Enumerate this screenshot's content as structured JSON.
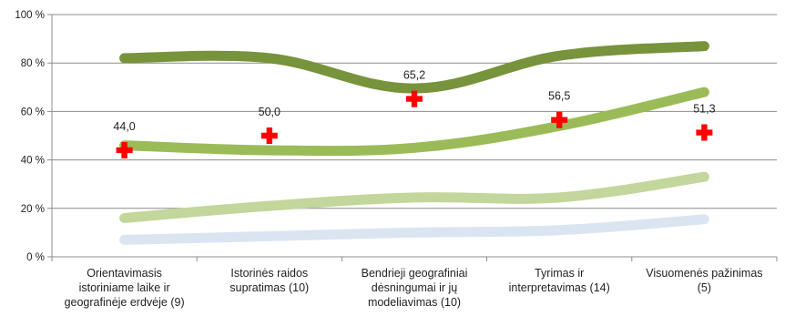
{
  "chart_data": {
    "type": "line",
    "title": "",
    "xlabel": "",
    "ylabel": "",
    "ylim": [
      0,
      100
    ],
    "yticks": [
      0,
      20,
      40,
      60,
      80,
      100
    ],
    "ytick_labels": [
      "0 %",
      "20 %",
      "40 %",
      "60 %",
      "80 %",
      "100 %"
    ],
    "grid": "horizontal",
    "legend": "none",
    "categories": [
      [
        "Orientavimasis",
        "istoriniame laike ir",
        "geografinėje erdvėje (9)"
      ],
      [
        "Istorinės raidos",
        "supratimas (10)"
      ],
      [
        "Bendrieji geografiniai",
        "dėsningumai ir jų",
        "modeliavimas (10)"
      ],
      [
        "Tyrimas ir",
        "interpretavimas (14)"
      ],
      [
        "Visuomenės pažinimas",
        "(5)"
      ]
    ],
    "series": [
      {
        "values": [
          82,
          82,
          69.5,
          83,
          87
        ],
        "color": "#77933c",
        "width": 11
      },
      {
        "values": [
          46,
          44,
          45,
          54,
          68
        ],
        "color": "#9bbb59",
        "width": 11
      },
      {
        "values": [
          16,
          21,
          24.5,
          24.5,
          33
        ],
        "color": "#c3d69b",
        "width": 11
      },
      {
        "values": [
          7,
          8.5,
          10,
          11,
          15.5
        ],
        "color": "#dbe5f1",
        "width": 11
      }
    ],
    "markers": {
      "symbol": "cross",
      "color": "#ff0000",
      "values": [
        44.0,
        50.0,
        65.2,
        56.5,
        51.3
      ],
      "labels": [
        "44,0",
        "50,0",
        "65,2",
        "56,5",
        "51,3"
      ]
    }
  }
}
